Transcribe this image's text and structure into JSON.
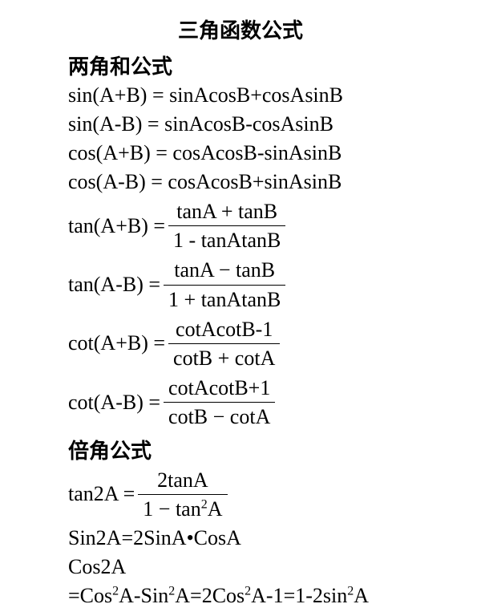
{
  "page": {
    "title": "三角函数公式",
    "background_color": "#ffffff",
    "text_color": "#000000",
    "title_fontsize": 26,
    "formula_fontsize": 26,
    "font_family_cn": "SimSun",
    "font_family_math": "Times New Roman"
  },
  "sections": {
    "sum_angle": {
      "heading": "两角和公式",
      "simple_formulas": {
        "sinAplusB": "sin(A+B) = sinAcosB+cosAsinB",
        "sinAminusB": "sin(A-B) = sinAcosB-cosAsinB",
        "cosAplusB": "cos(A+B) = cosAcosB-sinAsinB",
        "cosAminusB": "cos(A-B) = cosAcosB+sinAsinB"
      },
      "fraction_formulas": {
        "tanAplusB": {
          "lhs": "tan(A+B) =",
          "numerator": "tanA + tanB",
          "denominator": "1 - tanAtanB"
        },
        "tanAminusB": {
          "lhs": "tan(A-B) =",
          "numerator": "tanA − tanB",
          "denominator": "1 + tanAtanB"
        },
        "cotAplusB": {
          "lhs": "cot(A+B) =",
          "numerator": "cotAcotB-1",
          "denominator": "cotB + cotA"
        },
        "cotAminusB": {
          "lhs": "cot(A-B) =",
          "numerator": "cotAcotB+1",
          "denominator": "cotB − cotA"
        }
      }
    },
    "double_angle": {
      "heading": "倍角公式",
      "tan2A": {
        "lhs": "tan2A =",
        "numerator": "2tanA",
        "denom_before": "1 − tan",
        "denom_sup": "2",
        "denom_after": "A"
      },
      "sin2A": "Sin2A=2SinA•CosA",
      "cos2A_label": "Cos2A",
      "cos2A_eq": {
        "p1": "=Cos",
        "s1": "2",
        "p2": "A-Sin",
        "s2": "2",
        "p3": "A=2Cos",
        "s3": "2",
        "p4": "A-1=1-2sin",
        "s4": "2",
        "p5": "A"
      }
    }
  }
}
